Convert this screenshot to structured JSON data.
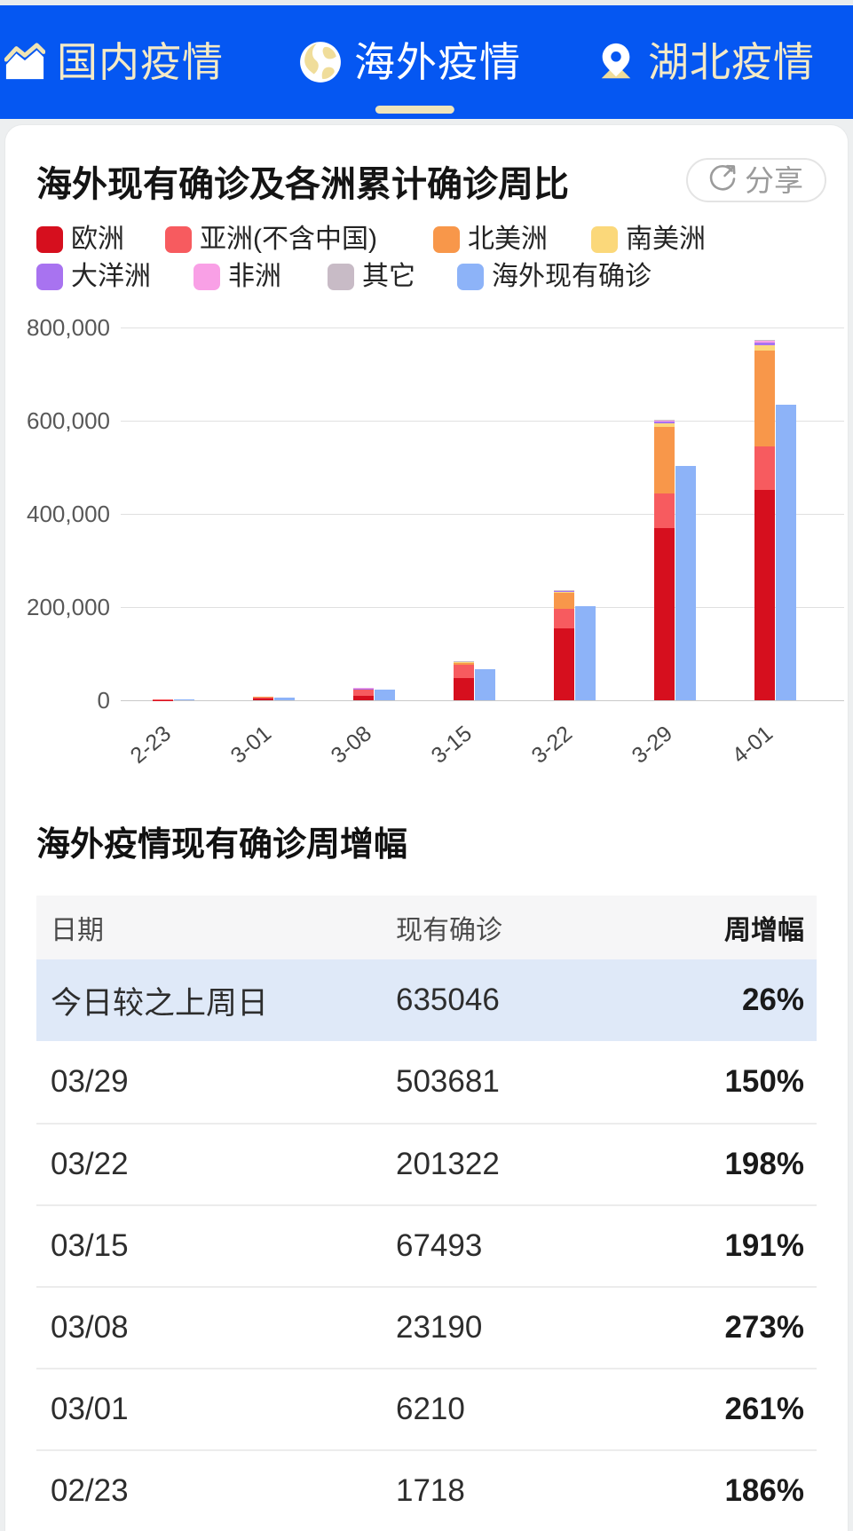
{
  "colors": {
    "header_bg": "#0557f2",
    "tab_text": "#f4eac6",
    "tab_active_text": "#ffffff",
    "active_underline": "#efe5bb",
    "highlight_row_bg": "#dfe9f8",
    "table_header_bg": "#f6f6f7"
  },
  "header": {
    "tabs": [
      {
        "label": "国内疫情",
        "icon": "area-chart-icon",
        "active": false
      },
      {
        "label": "海外疫情",
        "icon": "globe-icon",
        "active": true
      },
      {
        "label": "湖北疫情",
        "icon": "location-pin-icon",
        "active": false
      }
    ]
  },
  "card": {
    "title": "海外现有确诊及各洲累计确诊周比",
    "share_label": "分享"
  },
  "chart_data": {
    "type": "bar",
    "stacked": true,
    "title": "海外现有确诊及各洲累计确诊周比",
    "categories": [
      "2-23",
      "3-01",
      "3-08",
      "3-15",
      "3-22",
      "3-29",
      "4-01"
    ],
    "series": [
      {
        "name": "欧洲",
        "color": "#d60f1e",
        "values": [
          300,
          4000,
          9000,
          48000,
          154000,
          370000,
          452000
        ]
      },
      {
        "name": "亚洲(不含中国)",
        "color": "#f75b5f",
        "values": [
          1700,
          3200,
          15000,
          29000,
          42000,
          74000,
          93000
        ]
      },
      {
        "name": "北美洲",
        "color": "#f8974a",
        "values": [
          100,
          400,
          1200,
          5000,
          34000,
          143000,
          205000
        ]
      },
      {
        "name": "南美洲",
        "color": "#fbd87a",
        "values": [
          20,
          80,
          200,
          500,
          3000,
          7000,
          11000
        ]
      },
      {
        "name": "大洋洲",
        "color": "#a873f0",
        "values": [
          30,
          90,
          300,
          700,
          1500,
          4500,
          6500
        ]
      },
      {
        "name": "非洲",
        "color": "#f9a0e6",
        "values": [
          10,
          50,
          150,
          400,
          1200,
          3500,
          5000
        ]
      },
      {
        "name": "其它",
        "color": "#c8bbc6",
        "values": [
          10,
          30,
          100,
          200,
          700,
          800,
          1000
        ]
      }
    ],
    "bar_series": {
      "name": "海外现有确诊",
      "color": "#8db3f8",
      "values": [
        1718,
        6210,
        23190,
        67493,
        201322,
        503681,
        635046
      ]
    },
    "y_axis": {
      "max": 800000,
      "ticks": [
        {
          "value": 800000,
          "label": "800,000"
        },
        {
          "value": 600000,
          "label": "600,000"
        },
        {
          "value": 400000,
          "label": "400,000"
        },
        {
          "value": 200000,
          "label": "200,000"
        },
        {
          "value": 0,
          "label": "0"
        }
      ]
    },
    "grid": true,
    "legend_position": "top"
  },
  "table_section": {
    "title": "海外疫情现有确诊周增幅",
    "columns": [
      "日期",
      "现有确诊",
      "周增幅"
    ],
    "rows": [
      {
        "date": "今日较之上周日",
        "current": "635046",
        "growth": "26%",
        "highlight": true
      },
      {
        "date": "03/29",
        "current": "503681",
        "growth": "150%",
        "highlight": false
      },
      {
        "date": "03/22",
        "current": "201322",
        "growth": "198%",
        "highlight": false
      },
      {
        "date": "03/15",
        "current": "67493",
        "growth": "191%",
        "highlight": false
      },
      {
        "date": "03/08",
        "current": "23190",
        "growth": "273%",
        "highlight": false
      },
      {
        "date": "03/01",
        "current": "6210",
        "growth": "261%",
        "highlight": false
      },
      {
        "date": "02/23",
        "current": "1718",
        "growth": "186%",
        "highlight": false
      }
    ]
  }
}
